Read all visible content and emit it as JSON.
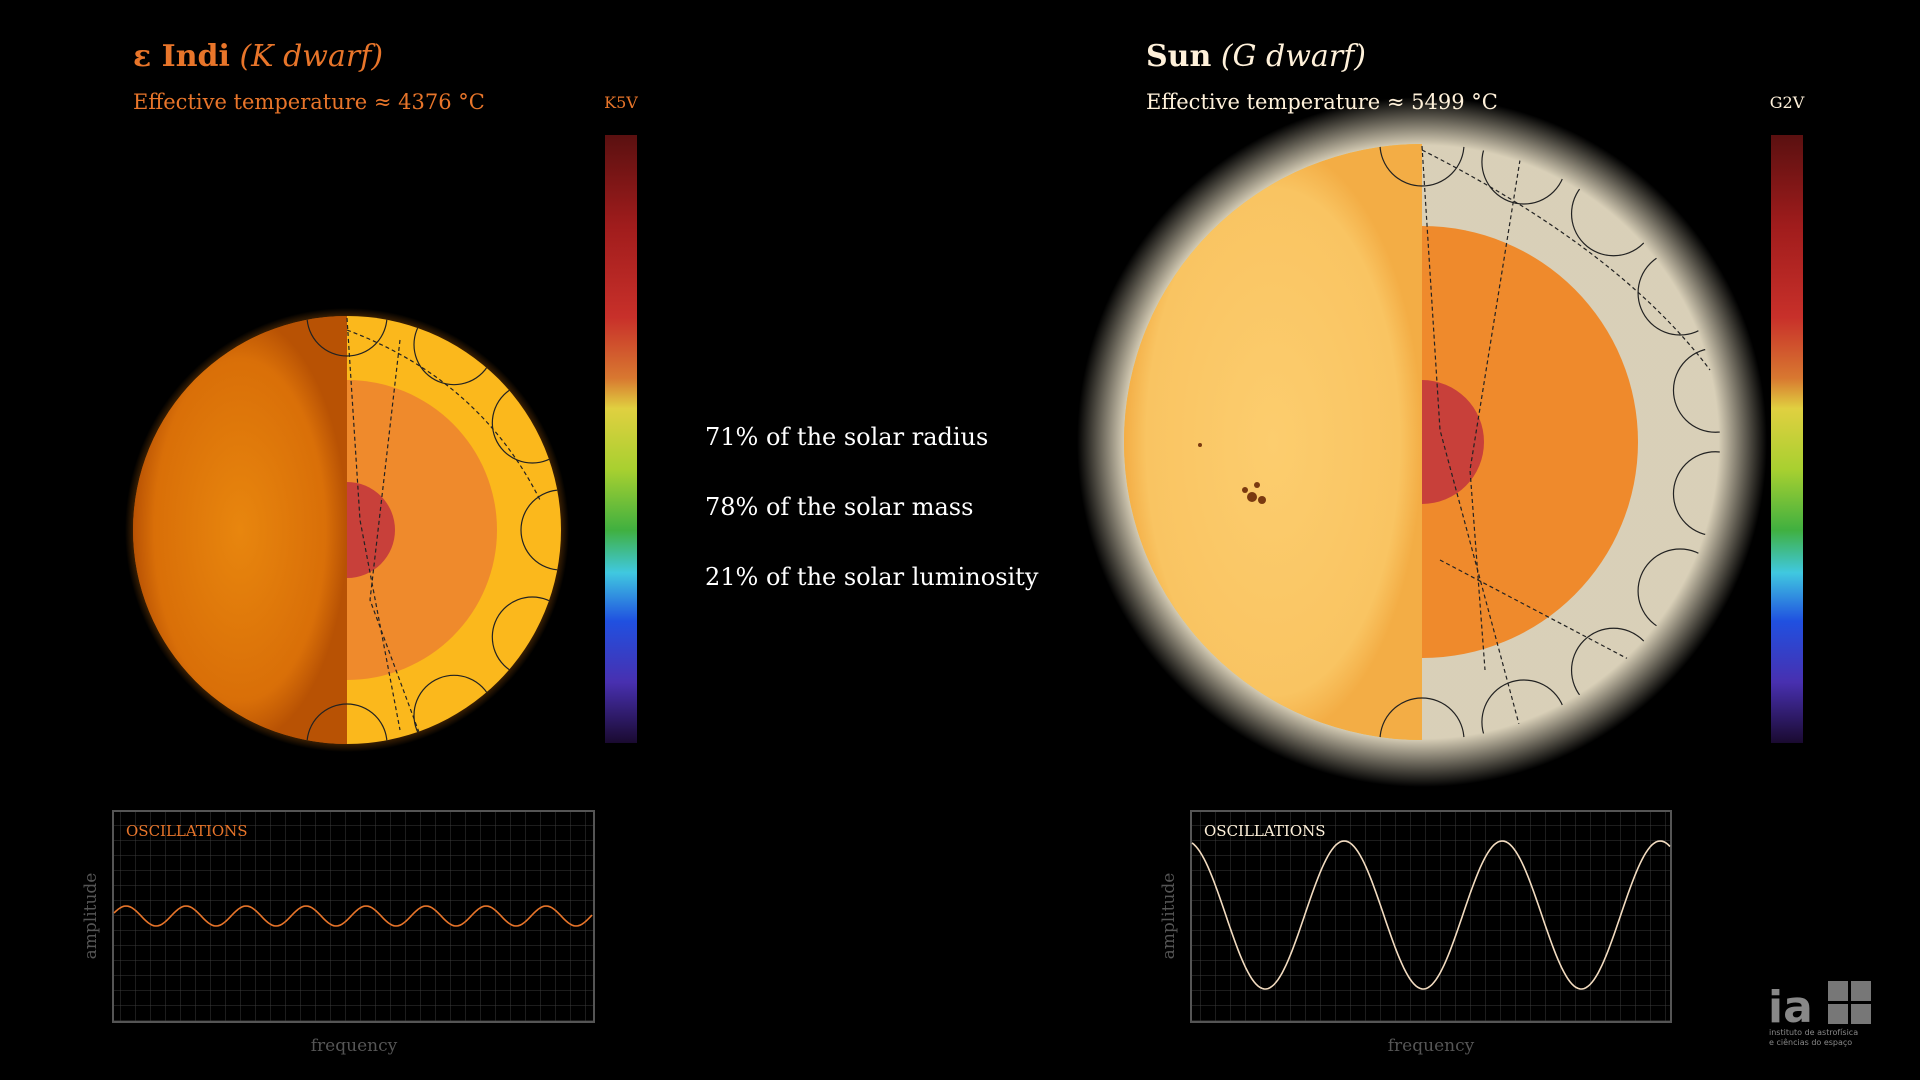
{
  "left": {
    "name": "ε Indi",
    "class": "(K dwarf)",
    "temperature": "Effective temperature ≈ 4376 °C",
    "spectral_type": "K5V",
    "oscillations": "OSCILLATIONS",
    "y_label": "amplitude",
    "x_label": "frequency"
  },
  "right": {
    "name": "Sun",
    "class": "(G dwarf)",
    "temperature": "Effective temperature ≈ 5499 °C",
    "spectral_type": "G2V",
    "oscillations": "OSCILLATIONS",
    "y_label": "amplitude",
    "x_label": "frequency"
  },
  "comparison": [
    "71% of the solar radius",
    "78% of the solar mass",
    "21% of the solar luminosity"
  ],
  "logo": {
    "mark": "ia",
    "line1": "instituto de astrofísica",
    "line2": "e ciências do espaço"
  }
}
